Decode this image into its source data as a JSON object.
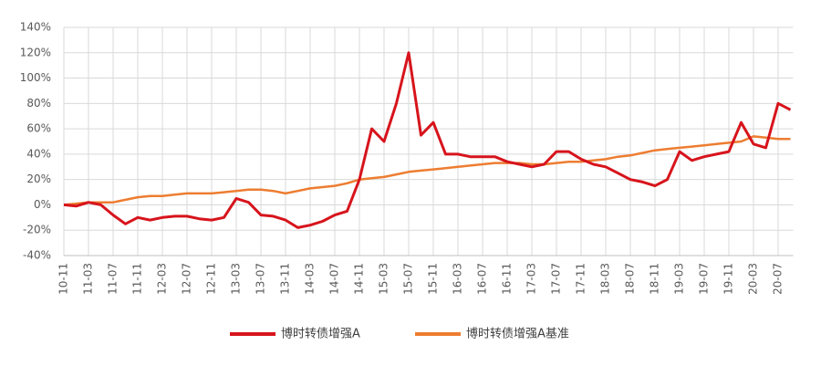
{
  "chart_data": {
    "type": "line",
    "categories": [
      "10-11",
      null,
      "11-03",
      null,
      "11-07",
      null,
      "11-11",
      null,
      "12-03",
      null,
      "12-07",
      null,
      "12-11",
      null,
      "13-03",
      null,
      "13-07",
      null,
      "13-11",
      null,
      "14-03",
      null,
      "14-07",
      null,
      "14-11",
      null,
      "15-03",
      null,
      "15-07",
      null,
      "15-11",
      null,
      "16-03",
      null,
      "16-07",
      null,
      "16-11",
      null,
      "17-03",
      null,
      "17-07",
      null,
      "17-11",
      null,
      "18-03",
      null,
      "18-07",
      null,
      "18-11",
      null,
      "19-03",
      null,
      "19-07",
      null,
      "19-11",
      null,
      "20-03",
      null,
      "20-07",
      null
    ],
    "series": [
      {
        "name": "博时转债增强A",
        "color": "#d7141c",
        "values": [
          0,
          -1,
          2,
          0,
          -8,
          -15,
          -10,
          -12,
          -10,
          -9,
          -9,
          -11,
          -12,
          -10,
          5,
          2,
          -8,
          -9,
          -12,
          -18,
          -16,
          -13,
          -8,
          -5,
          20,
          60,
          50,
          80,
          120,
          55,
          65,
          40,
          40,
          38,
          38,
          38,
          34,
          32,
          30,
          32,
          42,
          42,
          36,
          32,
          30,
          25,
          20,
          18,
          15,
          20,
          42,
          35,
          38,
          40,
          42,
          65,
          48,
          45,
          80,
          75
        ]
      },
      {
        "name": "博时转债增强A基准",
        "color": "#ed7d31",
        "values": [
          0,
          1,
          2,
          2,
          2,
          4,
          6,
          7,
          7,
          8,
          9,
          9,
          9,
          10,
          11,
          12,
          12,
          11,
          9,
          11,
          13,
          14,
          15,
          17,
          20,
          21,
          22,
          24,
          26,
          27,
          28,
          29,
          30,
          31,
          32,
          33,
          33,
          33,
          32,
          32,
          33,
          34,
          34,
          35,
          36,
          38,
          39,
          41,
          43,
          44,
          45,
          46,
          47,
          48,
          49,
          50,
          54,
          53,
          52,
          52
        ]
      }
    ],
    "ylim": [
      -40,
      140
    ],
    "yticks": [
      {
        "value": -40,
        "label": "-40%"
      },
      {
        "value": -20,
        "label": "-20%"
      },
      {
        "value": 0,
        "label": "0%"
      },
      {
        "value": 20,
        "label": "20%"
      },
      {
        "value": 40,
        "label": "40%"
      },
      {
        "value": 60,
        "label": "60%"
      },
      {
        "value": 80,
        "label": "80%"
      },
      {
        "value": 100,
        "label": "100%"
      },
      {
        "value": 120,
        "label": "120%"
      },
      {
        "value": 140,
        "label": "140%"
      }
    ],
    "grid": true
  }
}
